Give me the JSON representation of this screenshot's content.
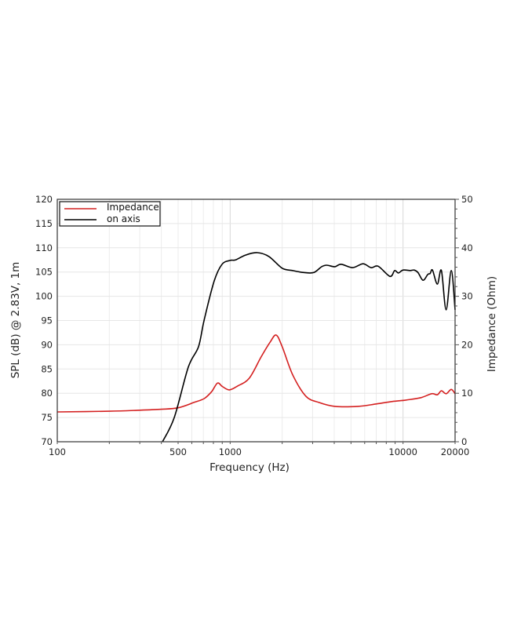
{
  "chart_data": {
    "type": "line",
    "xlabel": "Frequency (Hz)",
    "ylabel": "SPL (dB) @ 2.83V, 1m",
    "y2label": "Impedance (Ohm)",
    "xscale": "log",
    "xlim": [
      100,
      20000
    ],
    "ylim": [
      70,
      120
    ],
    "y2lim": [
      0,
      50
    ],
    "xticks": [
      "100",
      "500",
      "1000",
      "10000",
      "20000"
    ],
    "yticks": [
      "70",
      "75",
      "80",
      "85",
      "90",
      "95",
      "100",
      "105",
      "110",
      "115",
      "120"
    ],
    "y2ticks": [
      "0",
      "10",
      "20",
      "30",
      "40",
      "50"
    ],
    "grid": true,
    "legend_position": "top-left",
    "series": [
      {
        "name": "Impedance",
        "axis": "right",
        "color": "#d42020",
        "x": [
          100,
          200,
          300,
          400,
          500,
          617,
          707,
          780,
          845,
          900,
          990,
          1105,
          1290,
          1510,
          1700,
          1845,
          2000,
          2300,
          2740,
          3260,
          4030,
          5500,
          7010,
          8680,
          10380,
          12700,
          14650,
          15800,
          16670,
          17760,
          19000,
          20000
        ],
        "y": [
          6.15,
          6.3,
          6.5,
          6.7,
          7.0,
          8.1,
          8.9,
          10.3,
          12.1,
          11.4,
          10.7,
          11.5,
          13.1,
          17.5,
          20.5,
          22.0,
          19.6,
          13.8,
          9.4,
          8.1,
          7.3,
          7.3,
          7.8,
          8.3,
          8.6,
          9.1,
          9.9,
          9.7,
          10.5,
          9.9,
          10.8,
          9.9
        ]
      },
      {
        "name": "on axis",
        "axis": "left",
        "color": "#000000",
        "x": [
          406,
          475,
          573,
          656,
          707,
          809,
          898,
          1000,
          1073,
          1228,
          1434,
          1675,
          1999,
          2300,
          2670,
          3050,
          3380,
          3620,
          4030,
          4380,
          5110,
          5870,
          6540,
          7180,
          8400,
          8940,
          9400,
          10000,
          10990,
          11600,
          12200,
          13040,
          13900,
          14350,
          14800,
          15800,
          16670,
          17760,
          19000,
          20000
        ],
        "y": [
          70,
          75.0,
          85.4,
          89.6,
          95.1,
          103.2,
          106.6,
          107.4,
          107.5,
          108.5,
          109.0,
          108.2,
          105.8,
          105.3,
          104.9,
          104.9,
          106.1,
          106.4,
          106.1,
          106.6,
          105.9,
          106.7,
          105.9,
          106.2,
          104.1,
          105.3,
          104.8,
          105.4,
          105.3,
          105.4,
          104.9,
          103.3,
          104.5,
          104.7,
          105.4,
          102.5,
          105.3,
          97.2,
          105.3,
          97.2
        ]
      }
    ]
  }
}
